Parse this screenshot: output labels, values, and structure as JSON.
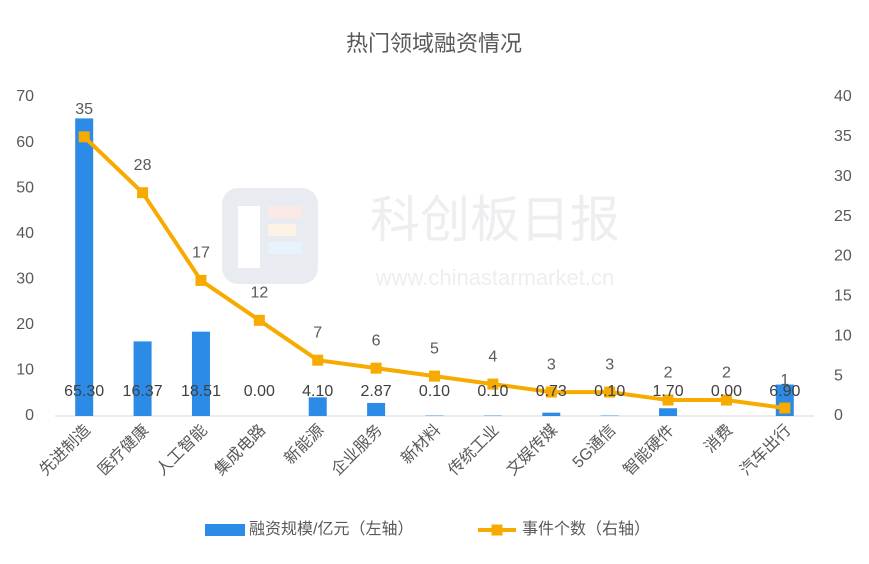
{
  "chart_data": {
    "type": "combo",
    "title": "热门领域融资情况",
    "watermark": {
      "brand": "科创板日报",
      "url": "www.chinastarmarket.cn"
    },
    "categories": [
      "先进制造",
      "医疗健康",
      "人工智能",
      "集成电路",
      "新能源",
      "企业服务",
      "新材料",
      "传统工业",
      "文娱传媒",
      "5G通信",
      "智能硬件",
      "消费",
      "汽车出行"
    ],
    "series": [
      {
        "name": "融资规模/亿元（左轴）",
        "type": "bar",
        "color": "#2b8be6",
        "values": [
          65.3,
          16.37,
          18.51,
          0,
          4.1,
          2.87,
          0.1,
          0.1,
          0.73,
          0.1,
          1.7,
          0,
          6.9
        ],
        "value_labels": [
          "65.30",
          "16.37",
          "18.51",
          "0.00",
          "4.10",
          "2.87",
          "0.10",
          "0.10",
          "0.73",
          "0.10",
          "1.70",
          "0.00",
          "6.90"
        ]
      },
      {
        "name": "事件个数（右轴）",
        "type": "line",
        "axis": "y2",
        "color": "#f7ab00",
        "values": [
          35,
          28,
          17,
          12,
          7,
          6,
          5,
          4,
          3,
          3,
          2,
          2,
          1
        ]
      }
    ],
    "ylim": [
      0,
      70
    ],
    "yticks": [
      0,
      10,
      20,
      30,
      40,
      50,
      60,
      70
    ],
    "y2lim": [
      0,
      40
    ],
    "y2ticks": [
      0,
      5,
      10,
      15,
      20,
      25,
      30,
      35,
      40
    ],
    "grid": false,
    "legend": "bottom"
  }
}
